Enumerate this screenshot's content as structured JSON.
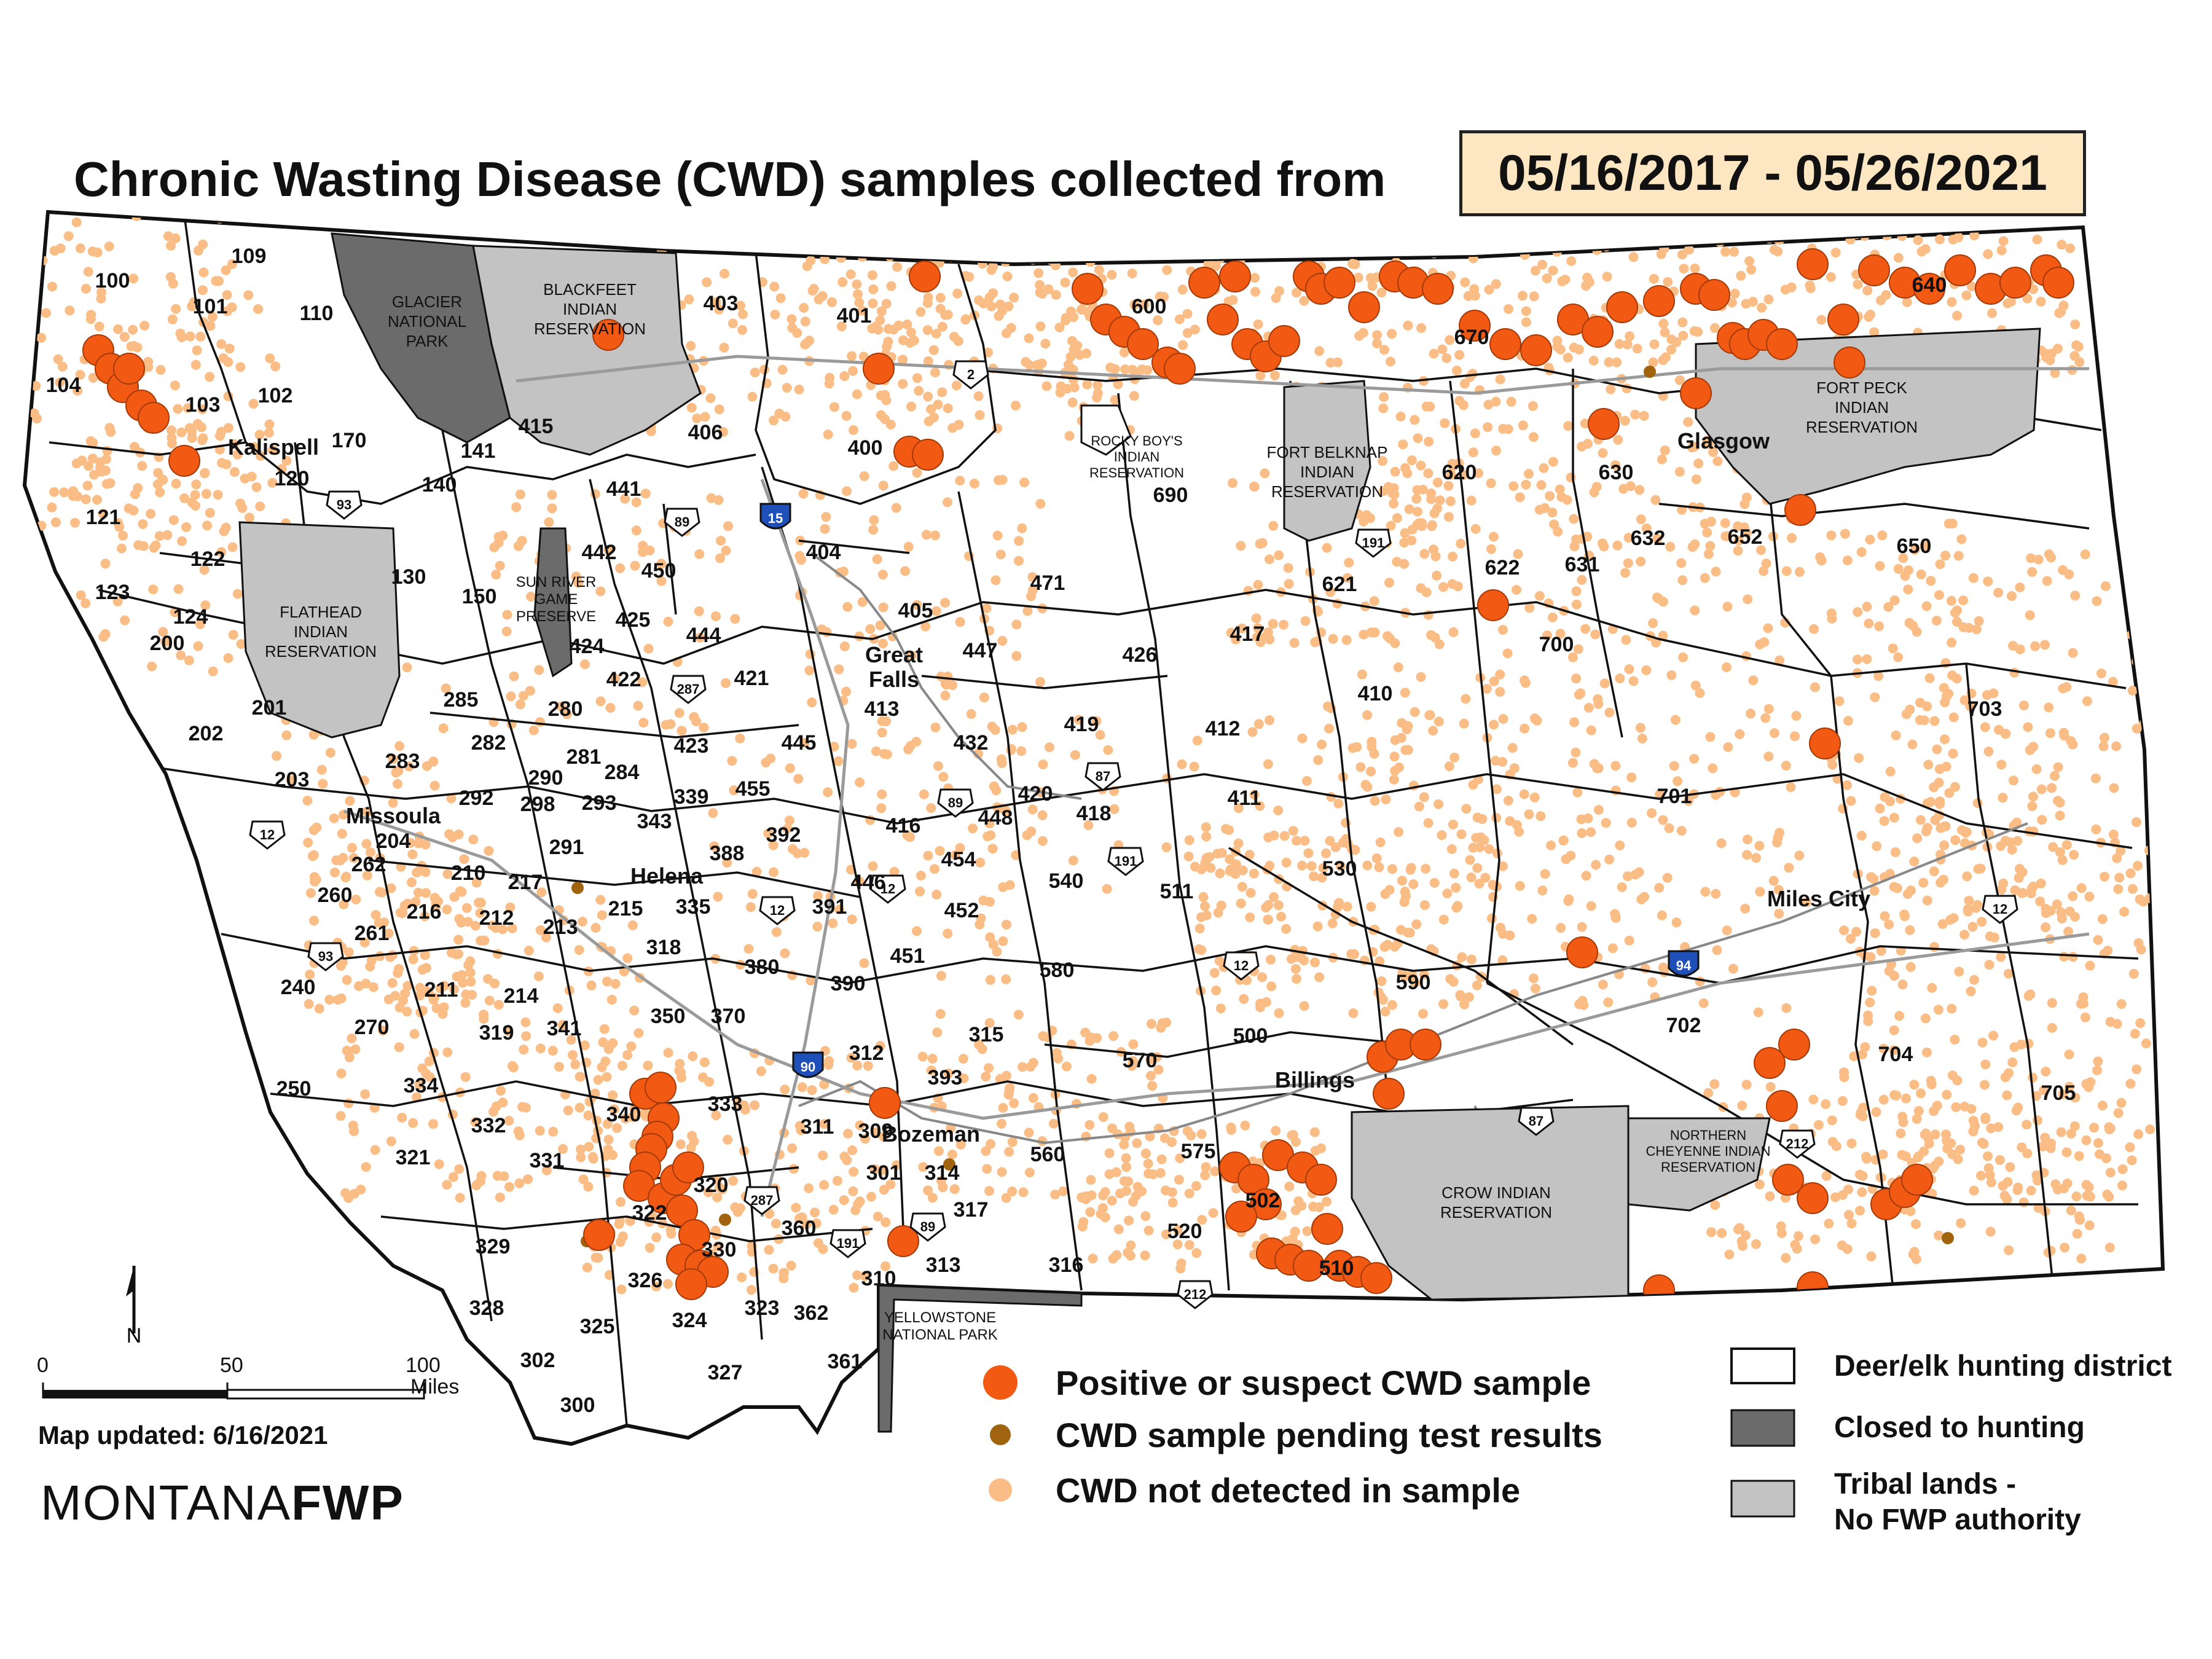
{
  "title": "Chronic Wasting Disease (CWD) samples collected from",
  "date_range": "05/16/2017  -  05/26/2021",
  "map_updated": "Map updated: 6/16/2021",
  "logo": {
    "plain": "MONTANA",
    "bold": "FWP"
  },
  "scale": {
    "ticks": [
      "0",
      "50",
      "100"
    ],
    "unit": "Miles"
  },
  "north_arrow": "N",
  "colors": {
    "positive": "#f25a14",
    "pending": "#a0630e",
    "not_detected": "#fbbd86",
    "closed": "#6b6b6b",
    "tribal": "#c3c3c3",
    "district": "#ffffff"
  },
  "legend_samples": [
    {
      "label": "Positive or suspect CWD sample",
      "symbol": "positive-dot-icon"
    },
    {
      "label": "CWD sample pending test results",
      "symbol": "pending-dot-icon"
    },
    {
      "label": "CWD not detected in sample",
      "symbol": "not-detected-dot-icon"
    }
  ],
  "legend_areas": [
    {
      "label": "Deer/elk hunting district",
      "symbol": "district-swatch-icon"
    },
    {
      "label": "Closed to hunting",
      "symbol": "closed-swatch-icon"
    },
    {
      "label": "Tribal lands -",
      "label2": "No FWP authority",
      "symbol": "tribal-swatch-icon"
    }
  ],
  "areas": {
    "glacier": [
      "GLACIER",
      "NATIONAL",
      "PARK"
    ],
    "blackfeet": [
      "BLACKFEET",
      "INDIAN",
      "RESERVATION"
    ],
    "flathead": [
      "FLATHEAD",
      "INDIAN",
      "RESERVATION"
    ],
    "fort_belknap": [
      "FORT BELKNAP",
      "INDIAN",
      "RESERVATION"
    ],
    "fort_peck": [
      "FORT PECK",
      "INDIAN",
      "RESERVATION"
    ],
    "rocky_boy": [
      "ROCKY BOY'S",
      "INDIAN",
      "RESERVATION"
    ],
    "sun_river": [
      "SUN RIVER",
      "GAME",
      "PRESERVE"
    ],
    "crow": [
      "CROW INDIAN",
      "RESERVATION"
    ],
    "northern_cheyenne": [
      "NORTHERN",
      "CHEYENNE INDIAN",
      "RESERVATION"
    ],
    "yellowstone": [
      "YELLOWSTONE",
      "NATIONAL PARK"
    ]
  },
  "cities": [
    "Kalispell",
    "Missoula",
    "Helena",
    "Great",
    "Falls",
    "Glasgow",
    "Miles City",
    "Billings",
    "Bozeman"
  ],
  "highway_shields": [
    "2",
    "15",
    "89",
    "93",
    "191",
    "287",
    "87",
    "12",
    "90",
    "94",
    "212"
  ],
  "districts": [
    "100",
    "101",
    "102",
    "103",
    "104",
    "109",
    "110",
    "120",
    "121",
    "122",
    "123",
    "124",
    "130",
    "140",
    "141",
    "150",
    "170",
    "200",
    "201",
    "202",
    "203",
    "204",
    "210",
    "211",
    "212",
    "213",
    "214",
    "215",
    "216",
    "217",
    "240",
    "250",
    "260",
    "261",
    "262",
    "270",
    "280",
    "281",
    "282",
    "283",
    "284",
    "285",
    "290",
    "291",
    "292",
    "293",
    "298",
    "300",
    "301",
    "302",
    "309",
    "310",
    "311",
    "312",
    "313",
    "314",
    "315",
    "316",
    "317",
    "318",
    "319",
    "320",
    "321",
    "322",
    "323",
    "324",
    "325",
    "326",
    "327",
    "328",
    "329",
    "330",
    "331",
    "332",
    "333",
    "334",
    "335",
    "339",
    "340",
    "341",
    "343",
    "350",
    "360",
    "361",
    "362",
    "370",
    "380",
    "388",
    "390",
    "391",
    "392",
    "393",
    "400",
    "401",
    "403",
    "404",
    "405",
    "406",
    "410",
    "411",
    "412",
    "413",
    "415",
    "416",
    "417",
    "418",
    "419",
    "420",
    "421",
    "422",
    "423",
    "424",
    "425",
    "426",
    "432",
    "441",
    "442",
    "444",
    "445",
    "446",
    "447",
    "448",
    "450",
    "451",
    "452",
    "454",
    "455",
    "471",
    "500",
    "502",
    "510",
    "511",
    "520",
    "530",
    "540",
    "560",
    "570",
    "575",
    "580",
    "590",
    "600",
    "620",
    "621",
    "622",
    "630",
    "631",
    "632",
    "640",
    "650",
    "652",
    "670",
    "690",
    "700",
    "701",
    "702",
    "703",
    "704",
    "705"
  ]
}
